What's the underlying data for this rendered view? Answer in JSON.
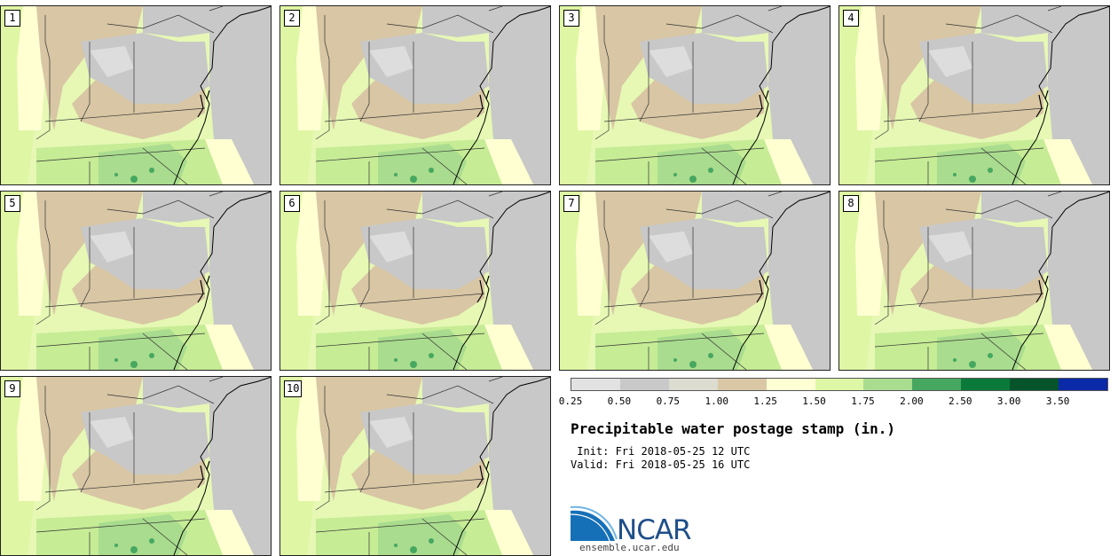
{
  "stamps": [
    {
      "label": "1"
    },
    {
      "label": "2"
    },
    {
      "label": "3"
    },
    {
      "label": "4"
    },
    {
      "label": "5"
    },
    {
      "label": "6"
    },
    {
      "label": "7"
    },
    {
      "label": "8"
    },
    {
      "label": "9"
    },
    {
      "label": "10"
    }
  ],
  "legend": {
    "colors": [
      "#e2e2e2",
      "#c9c9c9",
      "#dcdcd0",
      "#d9c7a6",
      "#ffffd4",
      "#ddf7a6",
      "#a9dc8e",
      "#46a760",
      "#0a7a3a",
      "#06542a",
      "#0a2aa8"
    ],
    "ticks": [
      "0.25",
      "0.50",
      "0.75",
      "1.00",
      "1.25",
      "1.50",
      "1.75",
      "2.00",
      "2.50",
      "3.00",
      "3.50"
    ]
  },
  "title": "Precipitable water postage stamp (in.)",
  "init_line": " Init: Fri 2018-05-25 12 UTC",
  "valid_line": "Valid: Fri 2018-05-25 16 UTC",
  "logo": {
    "name": "NCAR",
    "url": "ensemble.ucar.edu"
  }
}
